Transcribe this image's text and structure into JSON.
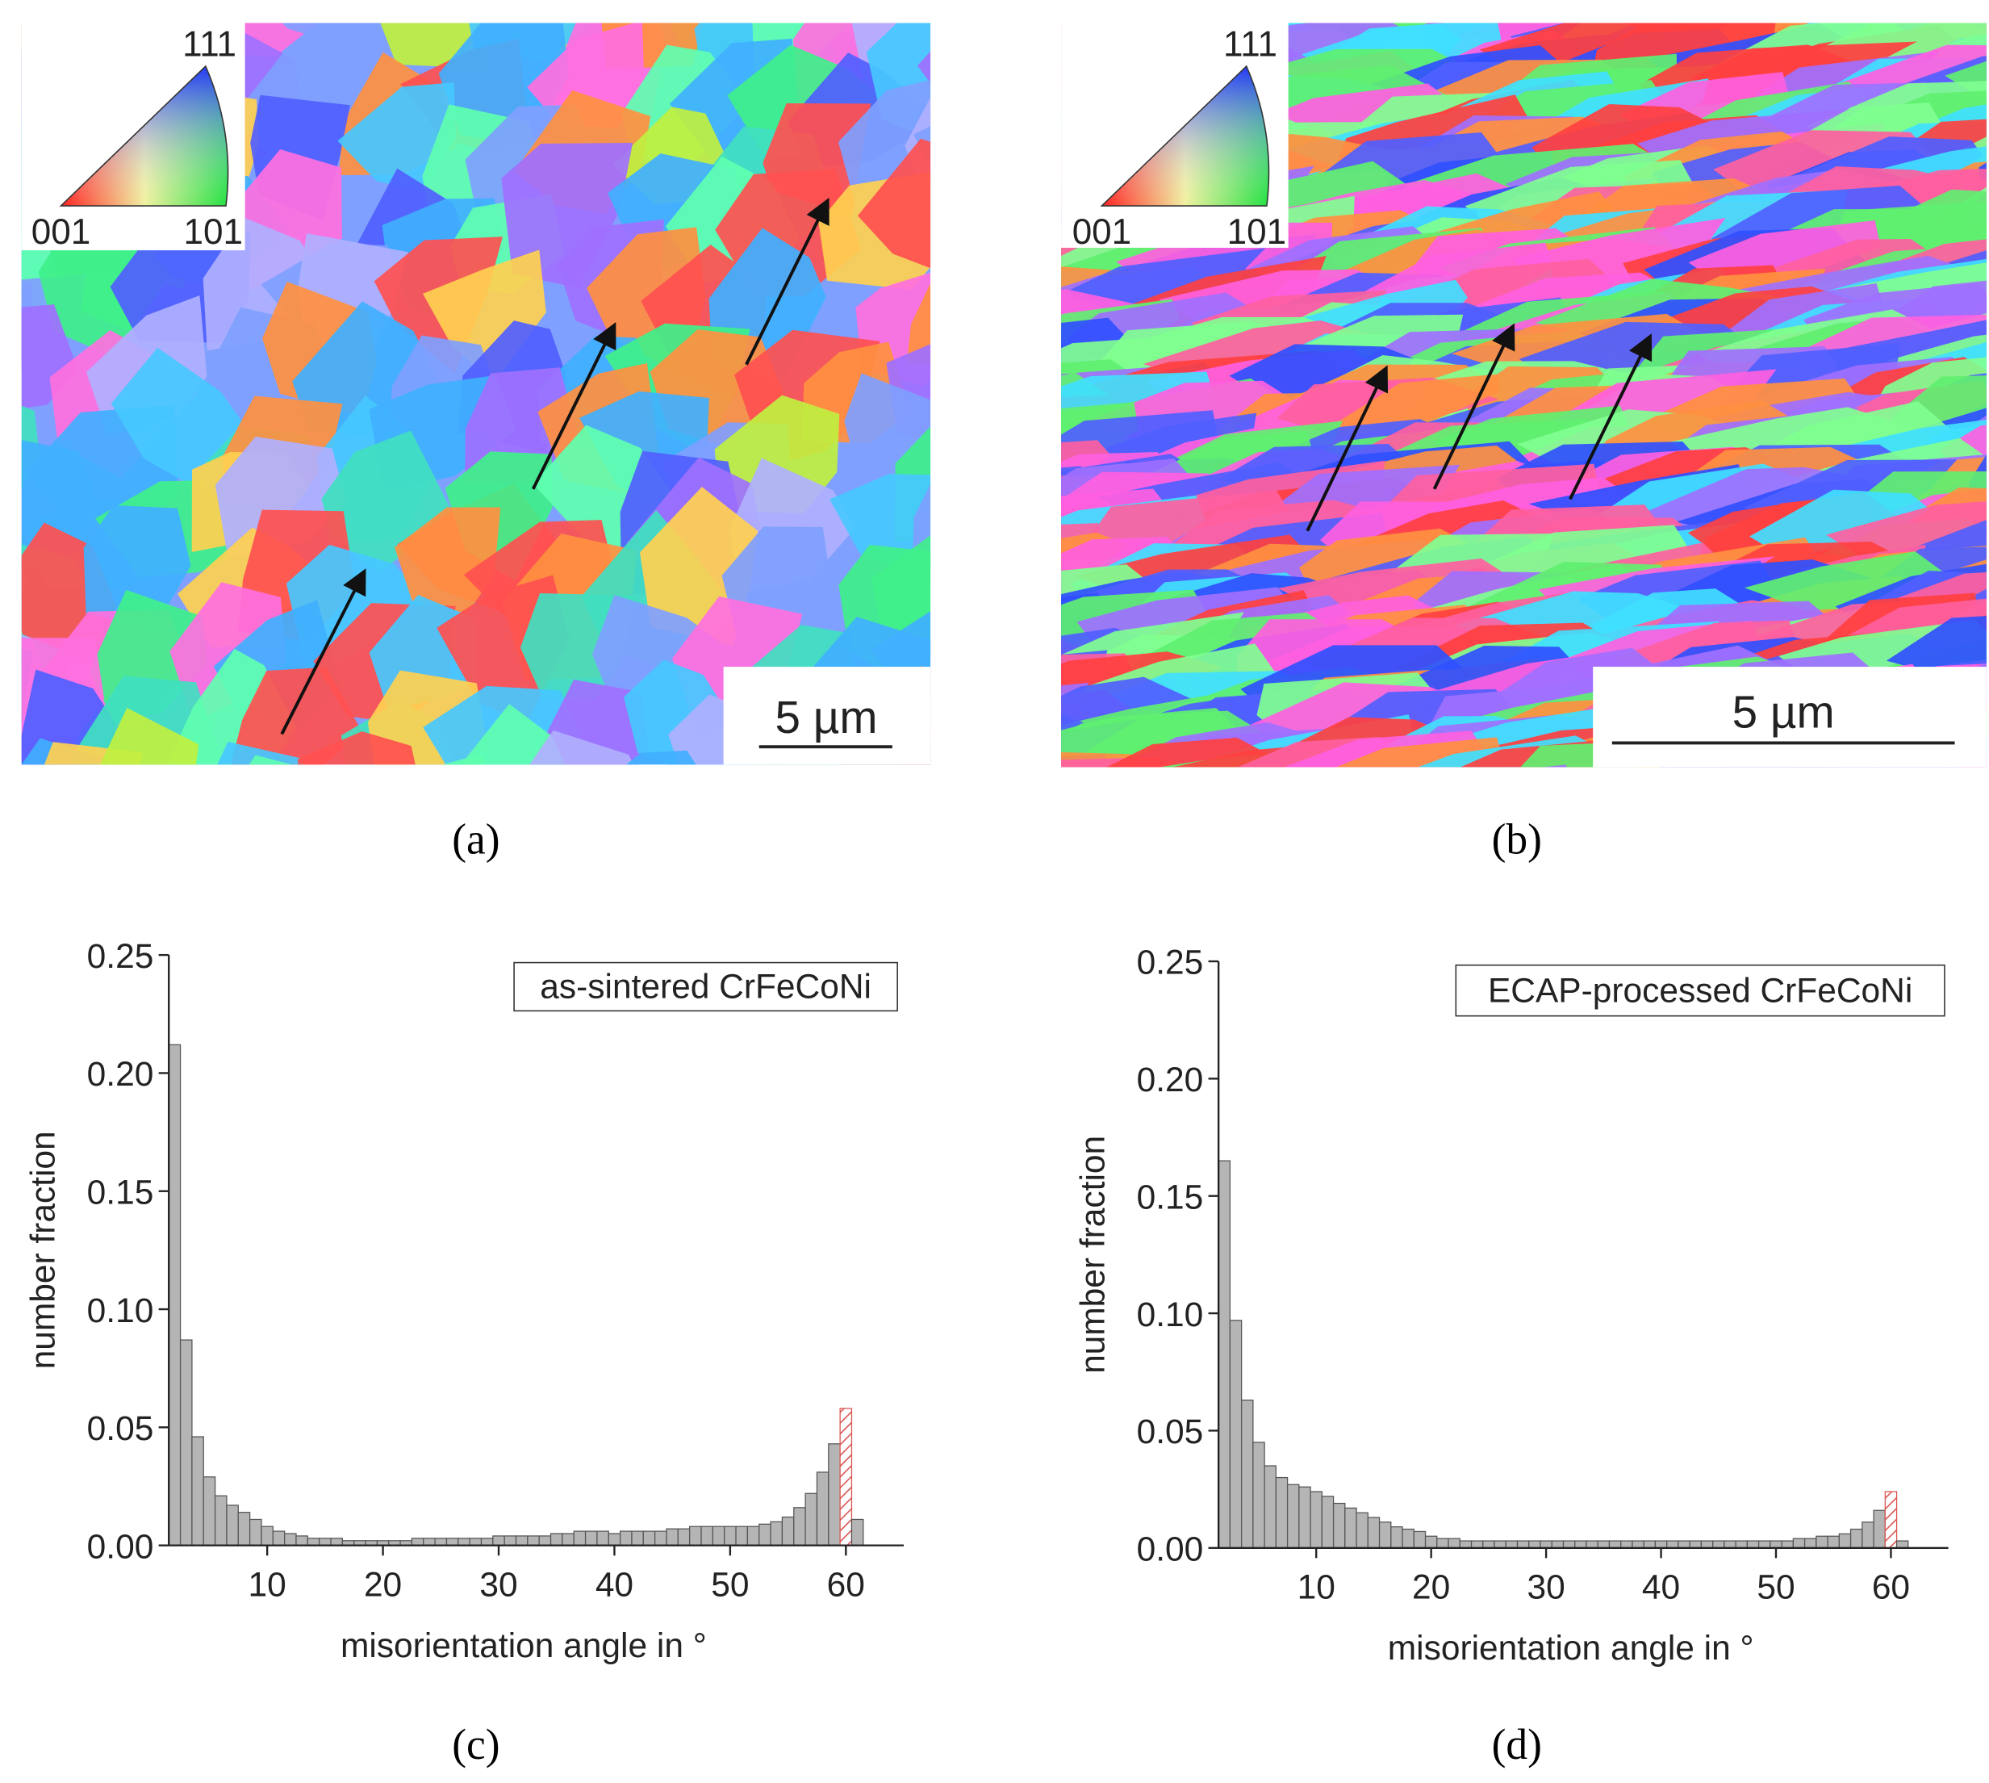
{
  "panels": {
    "a": {
      "legend_labels": [
        "111",
        "001",
        "101"
      ],
      "scale_bar": "5 µm",
      "caption": "(a)"
    },
    "b": {
      "legend_labels": [
        "111",
        "001",
        "101"
      ],
      "scale_bar": "5 µm",
      "caption": "(b)"
    },
    "c": {
      "caption": "(c)"
    },
    "d": {
      "caption": "(d)"
    }
  },
  "chart_data": [
    {
      "type": "histogram",
      "annotation": "as-sintered CrFeCoNi",
      "xlabel": "misorientation angle in °",
      "ylabel": "number fraction",
      "bins": [
        1.5,
        2.5,
        3.5,
        4.5,
        5.5,
        6.5,
        7.5,
        8.5,
        9.5,
        10.5,
        11.5,
        12.5,
        13.5,
        14.5,
        15.5,
        16.5,
        17.5,
        18.5,
        19.5,
        20.5,
        21.5,
        22.5,
        23.5,
        24.5,
        25.5,
        26.5,
        27.5,
        28.5,
        29.5,
        30.5,
        31.5,
        32.5,
        33.5,
        34.5,
        35.5,
        36.5,
        37.5,
        38.5,
        39.5,
        40.5,
        41.5,
        42.5,
        43.5,
        44.5,
        45.5,
        46.5,
        47.5,
        48.5,
        49.5,
        50.5,
        51.5,
        52.5,
        53.5,
        54.5,
        55.5,
        56.5,
        57.5,
        58.5,
        59.5,
        60.5,
        61.5
      ],
      "values": [
        0.212,
        0.087,
        0.046,
        0.029,
        0.021,
        0.017,
        0.014,
        0.011,
        0.008,
        0.006,
        0.005,
        0.004,
        0.003,
        0.003,
        0.003,
        0.002,
        0.002,
        0.002,
        0.002,
        0.002,
        0.002,
        0.003,
        0.003,
        0.003,
        0.003,
        0.003,
        0.003,
        0.003,
        0.004,
        0.004,
        0.004,
        0.004,
        0.004,
        0.005,
        0.005,
        0.006,
        0.006,
        0.006,
        0.005,
        0.006,
        0.006,
        0.006,
        0.006,
        0.007,
        0.007,
        0.008,
        0.008,
        0.008,
        0.008,
        0.008,
        0.008,
        0.009,
        0.01,
        0.012,
        0.016,
        0.022,
        0.031,
        0.043,
        0.058,
        0.011
      ],
      "color": "#b5b5b5",
      "highlight": {
        "at": 60,
        "color": "#d9534f"
      },
      "xlim": [
        1.5,
        65
      ],
      "xticks": [
        10,
        20,
        30,
        40,
        50,
        60
      ],
      "ylim": [
        0,
        0.25
      ],
      "yticks": [
        {
          "value": 0,
          "label": "0.00"
        },
        0.05,
        {
          "value": 0.1,
          "label": "0.10"
        },
        0.15,
        {
          "value": 0.2,
          "label": "0.20"
        },
        0.25
      ]
    },
    {
      "type": "histogram",
      "annotation": "ECAP-processed CrFeCoNi",
      "xlabel": "misorientation angle in °",
      "ylabel": "number fraction",
      "bins": [
        1.5,
        2.5,
        3.5,
        4.5,
        5.5,
        6.5,
        7.5,
        8.5,
        9.5,
        10.5,
        11.5,
        12.5,
        13.5,
        14.5,
        15.5,
        16.5,
        17.5,
        18.5,
        19.5,
        20.5,
        21.5,
        22.5,
        23.5,
        24.5,
        25.5,
        26.5,
        27.5,
        28.5,
        29.5,
        30.5,
        31.5,
        32.5,
        33.5,
        34.5,
        35.5,
        36.5,
        37.5,
        38.5,
        39.5,
        40.5,
        41.5,
        42.5,
        43.5,
        44.5,
        45.5,
        46.5,
        47.5,
        48.5,
        49.5,
        50.5,
        51.5,
        52.5,
        53.5,
        54.5,
        55.5,
        56.5,
        57.5,
        58.5,
        59.5,
        60.5,
        61.5
      ],
      "values": [
        0.165,
        0.097,
        0.063,
        0.045,
        0.035,
        0.03,
        0.027,
        0.026,
        0.024,
        0.022,
        0.019,
        0.017,
        0.015,
        0.013,
        0.011,
        0.009,
        0.008,
        0.007,
        0.005,
        0.004,
        0.004,
        0.003,
        0.003,
        0.003,
        0.003,
        0.003,
        0.003,
        0.003,
        0.003,
        0.003,
        0.003,
        0.003,
        0.003,
        0.003,
        0.003,
        0.003,
        0.003,
        0.003,
        0.003,
        0.003,
        0.003,
        0.003,
        0.003,
        0.003,
        0.003,
        0.003,
        0.003,
        0.003,
        0.003,
        0.003,
        0.004,
        0.004,
        0.005,
        0.005,
        0.006,
        0.008,
        0.011,
        0.016,
        0.024,
        0.003
      ],
      "color": "#b5b5b5",
      "highlight": {
        "at": 60,
        "color": "#d9534f"
      },
      "xlim": [
        1.5,
        65
      ],
      "xticks": [
        10,
        20,
        30,
        40,
        50,
        60
      ],
      "ylim": [
        0,
        0.25
      ],
      "yticks": [
        {
          "value": 0,
          "label": "0.00"
        },
        0.05,
        {
          "value": 0.1,
          "label": "0.10"
        },
        0.15,
        {
          "value": 0.2,
          "label": "0.20"
        },
        0.25
      ]
    }
  ]
}
